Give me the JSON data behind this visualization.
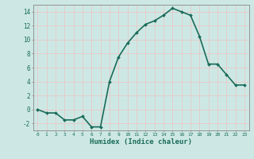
{
  "x": [
    0,
    1,
    2,
    3,
    4,
    5,
    6,
    7,
    8,
    9,
    10,
    11,
    12,
    13,
    14,
    15,
    16,
    17,
    18,
    19,
    20,
    21,
    22,
    23
  ],
  "y": [
    0,
    -0.5,
    -0.5,
    -1.5,
    -1.5,
    -1,
    -2.5,
    -2.5,
    4,
    7.5,
    9.5,
    11,
    12.2,
    12.7,
    13.5,
    14.5,
    14,
    13.5,
    10.5,
    6.5,
    6.5,
    5,
    3.5,
    3.5
  ],
  "line_color": "#1a6b5a",
  "marker": "D",
  "marker_size": 2.0,
  "bg_color": "#cde8e4",
  "grid_color": "#e8c8c8",
  "xlabel": "Humidex (Indice chaleur)",
  "ylabel": "",
  "ylim": [
    -3,
    15
  ],
  "xlim": [
    -0.5,
    23.5
  ],
  "yticks": [
    -2,
    0,
    2,
    4,
    6,
    8,
    10,
    12,
    14
  ],
  "xticks": [
    0,
    1,
    2,
    3,
    4,
    5,
    6,
    7,
    8,
    9,
    10,
    11,
    12,
    13,
    14,
    15,
    16,
    17,
    18,
    19,
    20,
    21,
    22,
    23
  ],
  "xlabel_color": "#1a6b5a",
  "tick_color": "#1a6b5a",
  "axis_color": "#888888",
  "linewidth": 1.2
}
